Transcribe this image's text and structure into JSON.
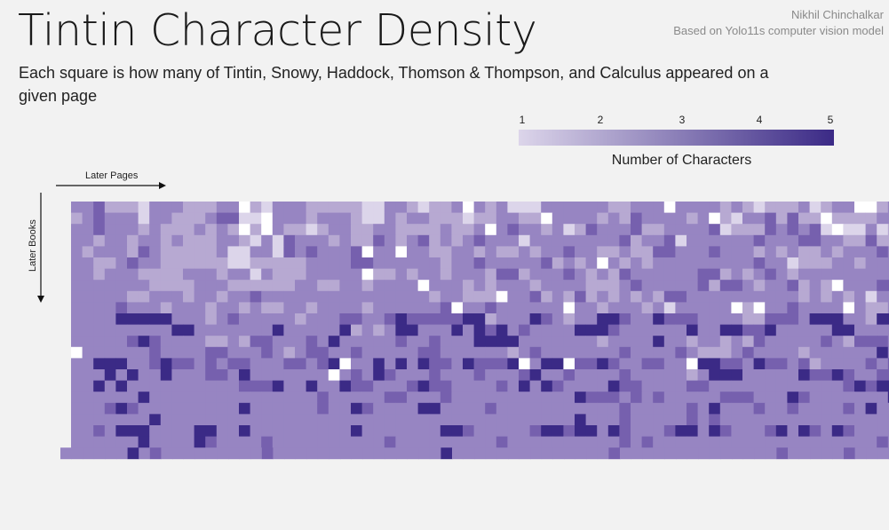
{
  "title": "Tintin Character Density",
  "subtitle": "Each square is how many of Tintin, Snowy, Haddock, Thomson & Thompson, and Calculus appeared on a given page",
  "credit": {
    "author": "Nikhil Chinchalkar",
    "source": "Based on Yolo11s computer vision model"
  },
  "colors": {
    "background": "#f2f2f2",
    "empty": "#ffffff",
    "scale": [
      "#ffffff",
      "#dcd5ea",
      "#b7a9d2",
      "#9785c2",
      "#7660ae",
      "#3b2a86"
    ]
  },
  "chart_data": {
    "type": "heatmap",
    "xlabel": "Later Pages",
    "ylabel": "Later Books",
    "legend_title": "Number of Characters",
    "legend_ticks": [
      "1",
      "2",
      "3",
      "4",
      "5"
    ],
    "value_range": [
      0,
      5
    ],
    "rows": [
      "3342221333222330213332222211332122303231113333332233303333232122231233002333333",
      "2343331332223441103332333211323322212233220333323243333230213342422022223333334",
      "3343332322232320203221233223322223223034332312433342233334122243434101131232433",
      "3323323323222332131433323224323423234333133333333423341333333433344332242232433",
      "3233324322222311331434333403303322332322323343322322443334333232322323334333432",
      "3322343322222211222223333443333332334333334232303232333333333433122233233332333",
      "3323332222333233132223333302232332333244233343232433333344232343233333333344433",
      "3333333222233322222233223323333033323233323333222343333342443233423203334444333",
      "3333322333233233433333333333333323322203342324232323244333333333323232313343332",
      "3333433323332332322332333323333334033433333303323332313333302033433330322333334",
      "3333555553332343333323334433454444455233354323355433544433332244435553325533534",
      "3333333335533333335333335232355333535453433335554333333533554453333355333332533",
      "3333345433332232443334353333343343335555333333323333533233232433333432444355533",
      "0333333433334433343234433433333443333332343333333433334322234333323333335333335",
      "3355533454434344333443450335353544354445035504454334433055443544342333343445533",
      "3335353353334435333333303435433343334333453343333433333235553333354454334445333",
      "3353533333333334445335335443334544333343535433335443333443333333333334545532254",
      "3333335333333333333333433333443334333333333335444343433333444333543333333534433",
      "3334543333333335333333433543333553333433333333333433333435333433433334353335433",
      "3333333533333333333333333333333333333333333335333433333434333333333333333333443",
      "3343555333355335333333333533333335543333345545535433345535433345354354333344333",
      "3333335333354333343333333333433333333343333333333434333333333333333333334333333"
    ],
    "last_row": "3333335343333333334333333333333333533333333333333433333333333333433333433333333333"
  }
}
